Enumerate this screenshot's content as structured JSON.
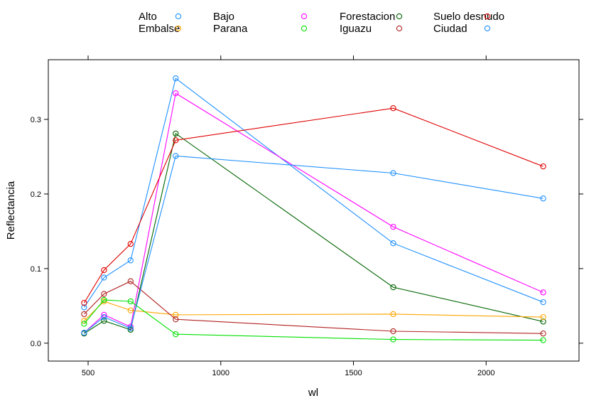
{
  "chart_data": {
    "type": "line",
    "xlabel": "wl",
    "ylabel": "Reflectancia",
    "xlim": [
      350,
      2350
    ],
    "ylim": [
      -0.024,
      0.38
    ],
    "xticks": [
      500,
      1000,
      1500,
      2000
    ],
    "yticks": [
      0.0,
      0.1,
      0.2,
      0.3
    ],
    "xtick_labels": [
      "500",
      "1000",
      "1500",
      "2000"
    ],
    "ytick_labels": [
      "0.0",
      "0.1",
      "0.2",
      "0.3"
    ],
    "legend_position": "top",
    "x": [
      485,
      560,
      660,
      830,
      1650,
      2215
    ],
    "series": [
      {
        "name": "Alto",
        "color": "#1e90ff",
        "values": [
          0.048,
          0.088,
          0.111,
          0.355,
          0.134,
          0.055
        ]
      },
      {
        "name": "Bajo",
        "color": "#ff00ff",
        "values": [
          0.014,
          0.038,
          0.022,
          0.335,
          0.156,
          0.068
        ]
      },
      {
        "name": "Forestacion",
        "color": "#006400",
        "values": [
          0.013,
          0.03,
          0.018,
          0.281,
          0.075,
          0.029
        ]
      },
      {
        "name": "Suelo desnudo",
        "color": "#e00000",
        "values": [
          0.054,
          0.098,
          0.133,
          0.272,
          0.315,
          0.237
        ]
      },
      {
        "name": "Embalse",
        "color": "#ffa500",
        "values": [
          0.03,
          0.056,
          0.044,
          0.038,
          0.039,
          0.035
        ]
      },
      {
        "name": "Parana",
        "color": "#00e000",
        "values": [
          0.026,
          0.058,
          0.056,
          0.012,
          0.005,
          0.004
        ]
      },
      {
        "name": "Iguazu",
        "color": "#b22222",
        "values": [
          0.039,
          0.066,
          0.083,
          0.032,
          0.016,
          0.013
        ]
      },
      {
        "name": "Ciudad",
        "color": "#1e90ff",
        "values": [
          0.014,
          0.035,
          0.02,
          0.251,
          0.228,
          0.194
        ]
      }
    ]
  }
}
